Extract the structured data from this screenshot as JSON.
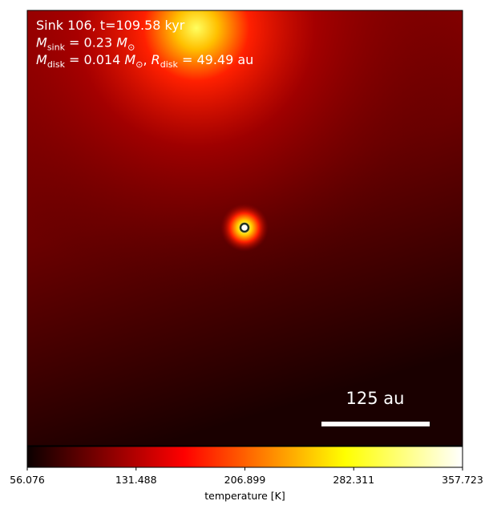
{
  "chart_data": {
    "type": "heatmap",
    "annotations": [
      [
        {
          "t": "Sink 106, t=109.58 kyr",
          "sub": false
        }
      ],
      [
        {
          "t": "M",
          "sub": false
        },
        {
          "t": "sink",
          "sub": true
        },
        {
          "t": " = 0.23 ",
          "sub": false
        },
        {
          "t": "M",
          "sub": false
        },
        {
          "t": "⊙",
          "sub": true
        }
      ],
      [
        {
          "t": "M",
          "sub": false
        },
        {
          "t": "disk",
          "sub": true
        },
        {
          "t": " = 0.014 ",
          "sub": false
        },
        {
          "t": "M",
          "sub": false
        },
        {
          "t": "⊙",
          "sub": true
        },
        {
          "t": ", ",
          "sub": false
        },
        {
          "t": "R",
          "sub": false
        },
        {
          "t": "disk",
          "sub": true
        },
        {
          "t": " = 49.49 au",
          "sub": false
        }
      ]
    ],
    "scalebar_label": "125 au",
    "colorbar": {
      "label": "temperature [K]",
      "clim": [
        56.076,
        357.723
      ],
      "ticks": [
        56.076,
        131.488,
        206.899,
        282.311,
        357.723
      ]
    }
  }
}
